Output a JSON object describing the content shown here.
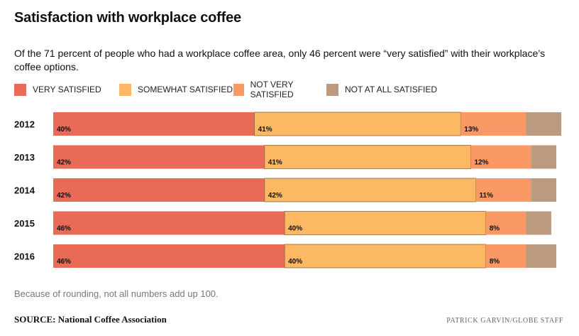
{
  "header": {
    "title": "Satisfaction with workplace coffee",
    "subtitle": "Of the 71 percent of people who had a workplace coffee area, only 46 percent were “very satisfied” with their workplace’s coffee options."
  },
  "footer": {
    "note": "Because of rounding, not all numbers add up 100.",
    "source": "SOURCE: National Coffee Association",
    "credit": "PATRICK GARVIN/GLOBE STAFF"
  },
  "chart_data": {
    "type": "bar",
    "orientation": "horizontal",
    "stacked": true,
    "categories": [
      "2012",
      "2013",
      "2014",
      "2015",
      "2016"
    ],
    "series": [
      {
        "name": "VERY SATISFIED",
        "color": "#e96b57",
        "values": [
          40,
          42,
          42,
          46,
          46
        ],
        "labels": [
          "40%",
          "42%",
          "42%",
          "46%",
          "46%"
        ]
      },
      {
        "name": "SOMEWHAT SATISFIED",
        "color": "#fdb863",
        "values": [
          41,
          41,
          42,
          40,
          40
        ],
        "labels": [
          "41%",
          "41%",
          "42%",
          "40%",
          "40%"
        ]
      },
      {
        "name": "NOT VERY SATISFIED",
        "color": "#fb9966",
        "values": [
          13,
          12,
          11,
          8,
          8
        ],
        "labels": [
          "13%",
          "12%",
          "11%",
          "8%",
          "8%"
        ]
      },
      {
        "name": "NOT AT ALL SATISFIED",
        "color": "#bc9a80",
        "values": [
          7,
          5,
          5,
          5,
          6
        ],
        "labels": [
          "",
          "",
          "",
          "",
          ""
        ]
      }
    ],
    "xlim": [
      0,
      100
    ],
    "legend_position": "top-left",
    "grid": false
  }
}
